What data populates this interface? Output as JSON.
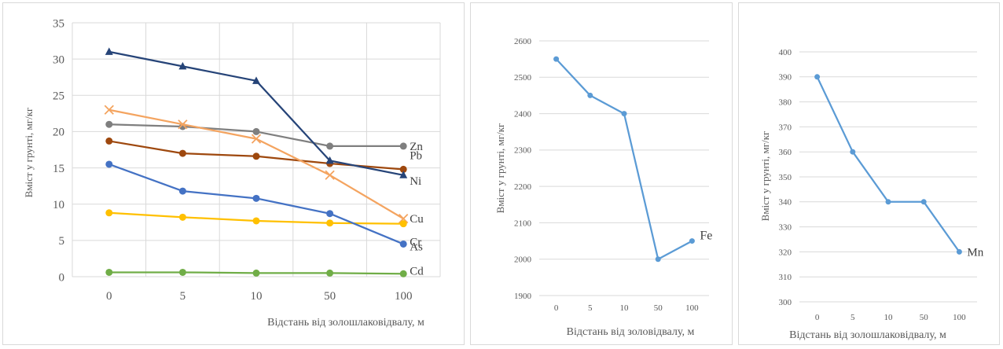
{
  "chart_data": [
    {
      "type": "line",
      "title": "",
      "xlabel": "Відстань від золошлаковідвалу, м",
      "ylabel": "Вміст у грунті, мг/кг",
      "categories": [
        "0",
        "5",
        "10",
        "50",
        "100"
      ],
      "ylim": [
        0,
        35
      ],
      "yticks": [
        "0",
        "5",
        "10",
        "15",
        "20",
        "25",
        "30",
        "35"
      ],
      "grid": true,
      "series": [
        {
          "name": "Zn",
          "values": [
            21,
            20.7,
            20,
            18,
            18
          ],
          "color": "#7f7f7f",
          "marker": "circle"
        },
        {
          "name": "Pb",
          "values": [
            18.7,
            17,
            16.6,
            15.6,
            14.8
          ],
          "color": "#9e480e",
          "marker": "circle"
        },
        {
          "name": "Ni",
          "values": [
            31,
            29,
            27,
            16,
            14
          ],
          "color": "#264478",
          "marker": "triangle"
        },
        {
          "name": "Cu",
          "values": [
            23,
            21,
            19,
            14,
            8
          ],
          "color": "#f4a460",
          "marker": "x"
        },
        {
          "name": "Cr",
          "values": [
            8.8,
            8.2,
            7.7,
            7.4,
            7.3
          ],
          "color": "#ffc000",
          "marker": "circle"
        },
        {
          "name": "As",
          "values": [
            15.5,
            11.8,
            10.8,
            8.7,
            4.5
          ],
          "color": "#4472c4",
          "marker": "circle"
        },
        {
          "name": "Cd",
          "values": [
            0.6,
            0.6,
            0.5,
            0.5,
            0.4
          ],
          "color": "#70ad47",
          "marker": "circle"
        }
      ]
    },
    {
      "type": "line",
      "title": "",
      "xlabel": "Відстань від золовідвалу, м",
      "ylabel": "Вміст у грунті, мг/кг",
      "categories": [
        "0",
        "5",
        "10",
        "50",
        "100"
      ],
      "ylim": [
        1900,
        2600
      ],
      "yticks": [
        "1900",
        "2000",
        "2100",
        "2200",
        "2300",
        "2400",
        "2500",
        "2600"
      ],
      "grid": true,
      "series": [
        {
          "name": "Fe",
          "values": [
            2550,
            2450,
            2400,
            2000,
            2050
          ],
          "color": "#5b9bd5",
          "marker": "circle"
        }
      ]
    },
    {
      "type": "line",
      "title": "",
      "xlabel": "Відстань від золошлаковідвалу, м",
      "ylabel": "Вміст у грунті, мг/кг",
      "categories": [
        "0",
        "5",
        "10",
        "50",
        "100"
      ],
      "ylim": [
        300,
        400
      ],
      "yticks": [
        "300",
        "310",
        "320",
        "330",
        "340",
        "350",
        "360",
        "370",
        "380",
        "390",
        "400"
      ],
      "grid": true,
      "series": [
        {
          "name": "Mn",
          "values": [
            390,
            360,
            340,
            340,
            320
          ],
          "color": "#5b9bd5",
          "marker": "circle"
        }
      ]
    }
  ]
}
